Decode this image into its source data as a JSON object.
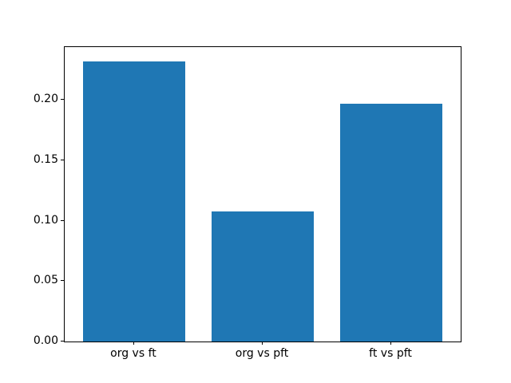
{
  "chart_data": {
    "type": "bar",
    "categories": [
      "org vs ft",
      "org vs pft",
      "ft vs pft"
    ],
    "values": [
      0.232,
      0.108,
      0.197
    ],
    "title": "",
    "xlabel": "",
    "ylabel": "",
    "ylim": [
      0,
      0.2438
    ],
    "yticks": [
      0,
      0.05,
      0.1,
      0.15,
      0.2
    ],
    "ytick_labels": [
      "0.00",
      "0.05",
      "0.10",
      "0.15",
      "0.20"
    ],
    "bar_color": "#1f77b4",
    "background_color": "#ffffff",
    "spine_color": "#000000",
    "grid": false,
    "legend": null,
    "bar_width_units": 0.8,
    "x_margin_fraction": 0.05
  }
}
